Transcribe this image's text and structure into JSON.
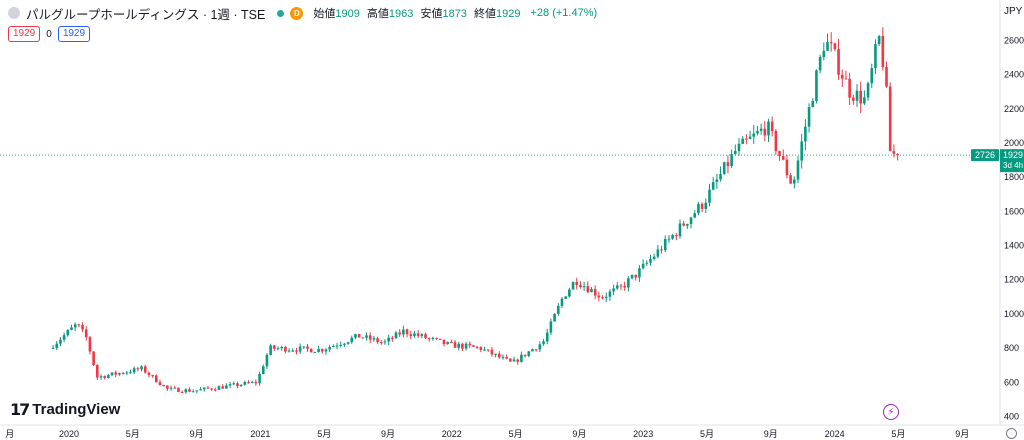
{
  "header": {
    "title": "パルグループホールディングス · 1週 · TSE",
    "market_badge": "D",
    "ohlc": [
      {
        "label": "始値",
        "value": "1909"
      },
      {
        "label": "高値",
        "value": "1963"
      },
      {
        "label": "安値",
        "value": "1873"
      },
      {
        "label": "終値",
        "value": "1929"
      }
    ],
    "change": "+28 (+1.47%)",
    "bid": "1929",
    "spread": "0",
    "ask": "1929",
    "currency": "JPY"
  },
  "price_scale": {
    "labels": [
      "400",
      "600",
      "800",
      "1000",
      "1200",
      "1400",
      "1600",
      "1800",
      "2000",
      "2200",
      "2400",
      "2600"
    ],
    "current_price": "1929",
    "countdown": "3d 4h",
    "count_badge": "2726"
  },
  "time_axis": [
    {
      "t": -1,
      "label": "月"
    },
    {
      "t": 0,
      "label": "2020"
    },
    {
      "t": 1,
      "label": "5月"
    },
    {
      "t": 2,
      "label": "9月"
    },
    {
      "t": 3,
      "label": "2021"
    },
    {
      "t": 4,
      "label": "5月"
    },
    {
      "t": 5,
      "label": "9月"
    },
    {
      "t": 6,
      "label": "2022"
    },
    {
      "t": 7,
      "label": "5月"
    },
    {
      "t": 8,
      "label": "9月"
    },
    {
      "t": 9,
      "label": "2023"
    },
    {
      "t": 10,
      "label": "5月"
    },
    {
      "t": 11,
      "label": "9月"
    },
    {
      "t": 12,
      "label": "2024"
    },
    {
      "t": 13,
      "label": "5月"
    },
    {
      "t": 14,
      "label": "9月"
    }
  ],
  "branding": {
    "logo": "TradingView"
  },
  "icons": {
    "symbol": "circle-icon",
    "alert": "lightning-icon",
    "timezone": "clock-icon"
  },
  "colors": {
    "up": "#089981",
    "down": "#f23645",
    "price_line": "#26a69a"
  },
  "chart_data": {
    "type": "candlestick",
    "ylim": [
      350,
      2720
    ],
    "y_scale": "linear",
    "grid": false,
    "current_price": 1929,
    "anchors": [
      {
        "t": -0.25,
        "v": 800
      },
      {
        "t": 0,
        "v": 880
      },
      {
        "t": 0.18,
        "v": 940
      },
      {
        "t": 0.33,
        "v": 860
      },
      {
        "t": 0.5,
        "v": 630
      },
      {
        "t": 0.8,
        "v": 650
      },
      {
        "t": 1.2,
        "v": 680
      },
      {
        "t": 1.6,
        "v": 560
      },
      {
        "t": 2,
        "v": 550
      },
      {
        "t": 2.6,
        "v": 580
      },
      {
        "t": 3,
        "v": 600
      },
      {
        "t": 3.2,
        "v": 800
      },
      {
        "t": 4,
        "v": 790
      },
      {
        "t": 4.6,
        "v": 870
      },
      {
        "t": 5,
        "v": 830
      },
      {
        "t": 5.3,
        "v": 900
      },
      {
        "t": 6,
        "v": 820
      },
      {
        "t": 6.5,
        "v": 800
      },
      {
        "t": 7,
        "v": 710
      },
      {
        "t": 7.5,
        "v": 840
      },
      {
        "t": 7.8,
        "v": 1100
      },
      {
        "t": 8,
        "v": 1200
      },
      {
        "t": 8.4,
        "v": 1100
      },
      {
        "t": 8.7,
        "v": 1150
      },
      {
        "t": 9,
        "v": 1250
      },
      {
        "t": 9.5,
        "v": 1450
      },
      {
        "t": 10,
        "v": 1650
      },
      {
        "t": 10.5,
        "v": 1950
      },
      {
        "t": 11,
        "v": 2100
      },
      {
        "t": 11.4,
        "v": 1750
      },
      {
        "t": 11.6,
        "v": 2100
      },
      {
        "t": 11.9,
        "v": 2600
      },
      {
        "t": 12,
        "v": 2550
      },
      {
        "t": 12.3,
        "v": 2300
      },
      {
        "t": 12.55,
        "v": 2250
      },
      {
        "t": 12.75,
        "v": 2620
      },
      {
        "t": 12.85,
        "v": 2400
      },
      {
        "t": 12.93,
        "v": 1950
      },
      {
        "t": 13,
        "v": 1929
      }
    ]
  }
}
